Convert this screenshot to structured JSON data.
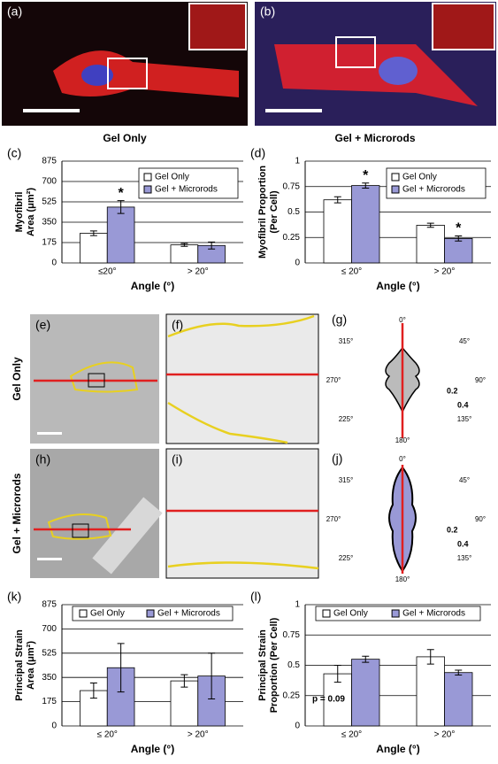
{
  "panel_labels": {
    "a": "(a)",
    "b": "(b)",
    "e": "(e)",
    "f": "(f)",
    "h": "(h)",
    "i": "(i)"
  },
  "column_titles": [
    "Gel Only",
    "Gel + Microrods"
  ],
  "row_titles": [
    "Gel Only",
    "Gel + Microrods"
  ],
  "polar_plots": [
    {
      "label": "(g)",
      "angles": [
        "0°",
        "45°",
        "90°",
        "135°",
        "180°",
        "225°",
        "270°",
        "315°"
      ],
      "radii": [
        "0.2",
        "0.4"
      ]
    },
    {
      "label": "(j)",
      "angles": [
        "0°",
        "45°",
        "90°",
        "135°",
        "180°",
        "225°",
        "270°",
        "315°"
      ],
      "radii": [
        "0.2",
        "0.4"
      ]
    }
  ],
  "chart_data": [
    {
      "type": "bar",
      "label": "(c)",
      "ylabel": [
        "Myofibril",
        "Area (μm²)"
      ],
      "xlabel": "Angle (°)",
      "categories": [
        "≤20°",
        "> 20°"
      ],
      "ylim": [
        0,
        875
      ],
      "yticks": [
        0,
        175,
        350,
        525,
        700,
        875
      ],
      "grid": true,
      "legend": "upper right",
      "series": [
        {
          "name": "Gel Only",
          "color": "#ffffff",
          "values": [
            255,
            155
          ],
          "errors": [
            20,
            12
          ],
          "markers": [
            null,
            null
          ]
        },
        {
          "name": "Gel + Microrods",
          "color": "#9999d6",
          "values": [
            480,
            150
          ],
          "errors": [
            55,
            30
          ],
          "markers": [
            "*",
            null
          ]
        }
      ]
    },
    {
      "type": "bar",
      "label": "(d)",
      "ylabel": [
        "Myofibril Proportion",
        "(Per Cell)"
      ],
      "xlabel": "Angle (°)",
      "categories": [
        "≤ 20°",
        "> 20°"
      ],
      "ylim": [
        0,
        1
      ],
      "yticks": [
        0,
        0.25,
        0.5,
        0.75,
        1
      ],
      "grid": true,
      "legend": "upper right",
      "series": [
        {
          "name": "Gel Only",
          "color": "#ffffff",
          "values": [
            0.62,
            0.37
          ],
          "errors": [
            0.03,
            0.02
          ],
          "markers": [
            null,
            null
          ]
        },
        {
          "name": "Gel + Microrods",
          "color": "#9999d6",
          "values": [
            0.76,
            0.24
          ],
          "errors": [
            0.025,
            0.025
          ],
          "markers": [
            "*",
            "*"
          ]
        }
      ]
    },
    {
      "type": "bar",
      "label": "(k)",
      "ylabel": [
        "Principal Strain",
        "Area (μm²)"
      ],
      "xlabel": "Angle (°)",
      "categories": [
        "≤ 20°",
        "> 20°"
      ],
      "ylim": [
        0,
        875
      ],
      "yticks": [
        0,
        175,
        350,
        525,
        700,
        875
      ],
      "grid": true,
      "legend": "upper center",
      "series": [
        {
          "name": "Gel Only",
          "color": "#ffffff",
          "values": [
            255,
            325
          ],
          "errors": [
            55,
            45
          ],
          "markers": [
            null,
            null
          ]
        },
        {
          "name": "Gel + Microrods",
          "color": "#9999d6",
          "values": [
            420,
            360
          ],
          "errors": [
            175,
            165
          ],
          "markers": [
            null,
            null
          ]
        }
      ]
    },
    {
      "type": "bar",
      "label": "(l)",
      "ylabel": [
        "Principal Strain",
        "Proportion (Per Cell)"
      ],
      "xlabel": "Angle (°)",
      "categories": [
        "≤ 20°",
        "> 20°"
      ],
      "ylim": [
        0,
        1
      ],
      "yticks": [
        0,
        0.25,
        0.5,
        0.75,
        1
      ],
      "grid": true,
      "legend": "upper center",
      "annotation": "p = 0.09",
      "series": [
        {
          "name": "Gel Only",
          "color": "#ffffff",
          "values": [
            0.43,
            0.57
          ],
          "errors": [
            0.07,
            0.06
          ],
          "markers": [
            null,
            null
          ]
        },
        {
          "name": "Gel + Microrods",
          "color": "#9999d6",
          "values": [
            0.55,
            0.44
          ],
          "errors": [
            0.025,
            0.02
          ],
          "markers": [
            null,
            null
          ]
        }
      ]
    }
  ]
}
